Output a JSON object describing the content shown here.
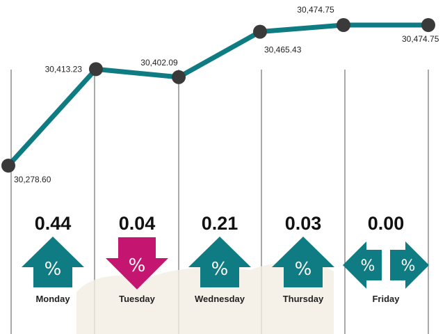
{
  "colors": {
    "line": "#0f7c83",
    "up": "#0f7c83",
    "down": "#c41570",
    "flat": "#0f7c83",
    "marker": "#3a3a3a",
    "gridline": "#555555"
  },
  "chart_data": {
    "type": "line",
    "categories": [
      "Monday",
      "Tuesday",
      "Wednesday",
      "Thursday",
      "Friday"
    ],
    "points": [
      {
        "label": "30,278.60",
        "value": 30278.6
      },
      {
        "label": "30,413.23",
        "value": 30413.23
      },
      {
        "label": "30,402.09",
        "value": 30402.09
      },
      {
        "label": "30,465.43",
        "value": 30465.43
      },
      {
        "label": "30,474.75",
        "value": 30474.75
      },
      {
        "label": "30,474.75",
        "value": 30474.75
      }
    ],
    "changes": [
      {
        "day": "Monday",
        "percent": "0.44",
        "direction": "up",
        "symbol": "%"
      },
      {
        "day": "Tuesday",
        "percent": "0.04",
        "direction": "down",
        "symbol": "%"
      },
      {
        "day": "Wednesday",
        "percent": "0.21",
        "direction": "up",
        "symbol": "%"
      },
      {
        "day": "Thursday",
        "percent": "0.03",
        "direction": "up",
        "symbol": "%"
      },
      {
        "day": "Friday",
        "percent": "0.00",
        "direction": "flat",
        "symbol": "%"
      }
    ],
    "ylim": [
      30250,
      30500
    ]
  }
}
